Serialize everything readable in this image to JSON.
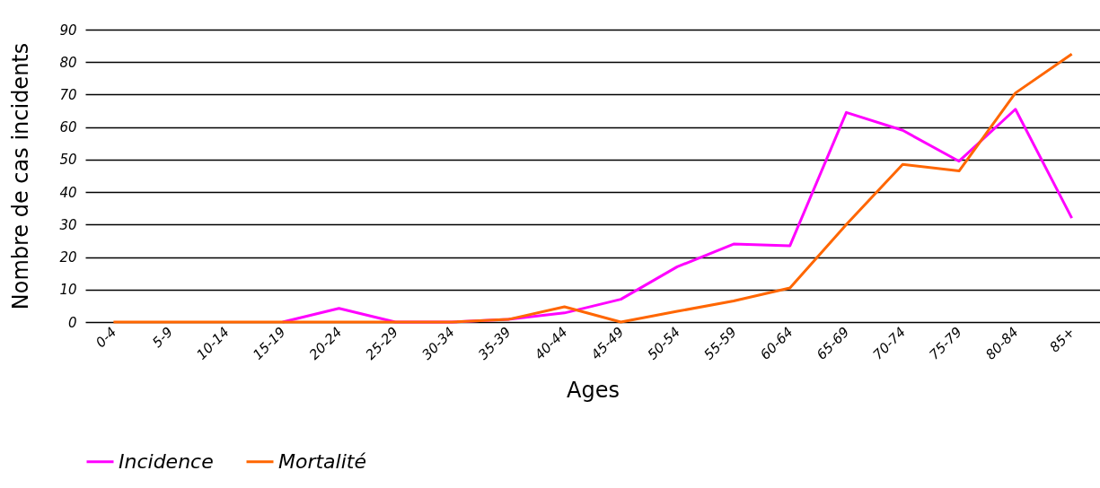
{
  "chart_data": {
    "type": "line",
    "xlabel": "Ages",
    "ylabel": "Nombre de cas incidents",
    "categories": [
      "0-4",
      "5-9",
      "10-14",
      "15-19",
      "20-24",
      "25-29",
      "30-34",
      "35-39",
      "40-44",
      "45-49",
      "50-54",
      "55-59",
      "60-64",
      "65-69",
      "70-74",
      "75-79",
      "80-84",
      "85+"
    ],
    "series": [
      {
        "name": "Incidence",
        "color": "#ff00ff",
        "values": [
          null,
          null,
          null,
          0,
          4.2,
          0,
          0,
          0.8,
          2.8,
          7,
          17,
          24,
          23.5,
          64.5,
          59,
          49.5,
          65.5,
          32
        ]
      },
      {
        "name": "Mortalité",
        "color": "#ff6600",
        "values": [
          0,
          0,
          0,
          0,
          0,
          0,
          0,
          0.8,
          4.7,
          0,
          3.3,
          6.5,
          10.5,
          30,
          48.5,
          46.5,
          70.5,
          82.5
        ]
      }
    ],
    "ylim": [
      0,
      90
    ],
    "yticks": [
      0,
      10,
      20,
      30,
      40,
      50,
      60,
      70,
      80,
      90
    ],
    "grid": "y",
    "legend": "bottom",
    "marker": "none",
    "line_style": "solid"
  }
}
